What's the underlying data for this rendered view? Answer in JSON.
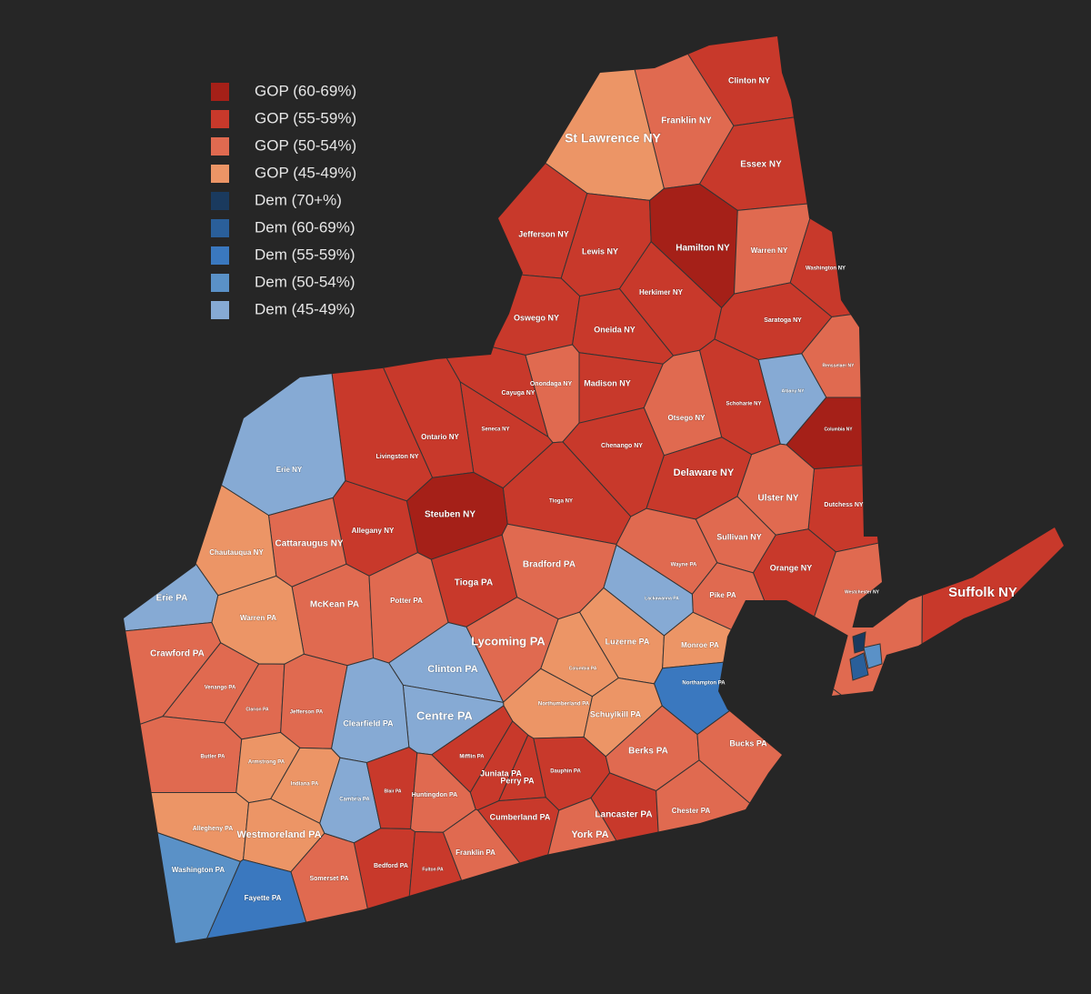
{
  "legend": [
    {
      "label": "GOP (60-69%)",
      "color": "#a52018"
    },
    {
      "label": "GOP (55-59%)",
      "color": "#c8392b"
    },
    {
      "label": "GOP (50-54%)",
      "color": "#e06a50"
    },
    {
      "label": "GOP (45-49%)",
      "color": "#ec9566"
    },
    {
      "label": "Dem (70+%)",
      "color": "#1a3a5e"
    },
    {
      "label": "Dem (60-69%)",
      "color": "#2a5f9a"
    },
    {
      "label": "Dem (55-59%)",
      "color": "#3a78bf"
    },
    {
      "label": "Dem (50-54%)",
      "color": "#5a91c7"
    },
    {
      "label": "Dem (45-49%)",
      "color": "#86aad4"
    }
  ],
  "counties": [
    {
      "name": "Clinton NY",
      "class": 1
    },
    {
      "name": "Franklin NY",
      "class": 2
    },
    {
      "name": "St Lawrence NY",
      "class": 3
    },
    {
      "name": "Essex NY",
      "class": 1
    },
    {
      "name": "Jefferson NY",
      "class": 1
    },
    {
      "name": "Lewis NY",
      "class": 1
    },
    {
      "name": "Hamilton NY",
      "class": 0
    },
    {
      "name": "Warren NY",
      "class": 2
    },
    {
      "name": "Washington NY",
      "class": 1
    },
    {
      "name": "Herkimer NY",
      "class": 1
    },
    {
      "name": "Oswego NY",
      "class": 1
    },
    {
      "name": "Oneida NY",
      "class": 1
    },
    {
      "name": "Saratoga NY",
      "class": 1
    },
    {
      "name": "Rensselaer NY",
      "class": 2
    },
    {
      "name": "Onondaga NY",
      "class": 2
    },
    {
      "name": "Madison NY",
      "class": 1
    },
    {
      "name": "Cayuga NY",
      "class": 1
    },
    {
      "name": "Albany NY",
      "class": 8
    },
    {
      "name": "Otsego NY",
      "class": 2
    },
    {
      "name": "Schoharie NY",
      "class": 1
    },
    {
      "name": "Columbia NY",
      "class": 0
    },
    {
      "name": "Seneca NY",
      "class": 1
    },
    {
      "name": "Ontario NY",
      "class": 1
    },
    {
      "name": "Livingston NY",
      "class": 1
    },
    {
      "name": "Chenango NY",
      "class": 1
    },
    {
      "name": "Erie NY",
      "class": 8
    },
    {
      "name": "Delaware NY",
      "class": 1
    },
    {
      "name": "Tioga NY",
      "class": 1
    },
    {
      "name": "Dutchess NY",
      "class": 1
    },
    {
      "name": "Ulster NY",
      "class": 2
    },
    {
      "name": "Steuben NY",
      "class": 0
    },
    {
      "name": "Allegany NY",
      "class": 1
    },
    {
      "name": "Cattaraugus NY",
      "class": 2
    },
    {
      "name": "Chautauqua NY",
      "class": 3
    },
    {
      "name": "Sullivan NY",
      "class": 2
    },
    {
      "name": "Orange NY",
      "class": 1
    },
    {
      "name": "Bradford PA",
      "class": 2
    },
    {
      "name": "Tioga PA",
      "class": 1
    },
    {
      "name": "Wayne PA",
      "class": 2
    },
    {
      "name": "Westchester NY",
      "class": 2
    },
    {
      "name": "Suffolk NY",
      "class": 1
    },
    {
      "name": "Pike PA",
      "class": 2
    },
    {
      "name": "Lackawanna PA",
      "class": 8
    },
    {
      "name": "Erie PA",
      "class": 8
    },
    {
      "name": "McKean PA",
      "class": 2
    },
    {
      "name": "Potter PA",
      "class": 2
    },
    {
      "name": "Warren PA",
      "class": 3
    },
    {
      "name": "Lycoming PA",
      "class": 2
    },
    {
      "name": "Luzerne PA",
      "class": 3
    },
    {
      "name": "Monroe PA",
      "class": 3
    },
    {
      "name": "Crawford PA",
      "class": 2
    },
    {
      "name": "Clinton PA",
      "class": 8
    },
    {
      "name": "Columbia PA",
      "class": 3
    },
    {
      "name": "Northampton PA",
      "class": 6
    },
    {
      "name": "Venango PA",
      "class": 2
    },
    {
      "name": "Clarion PA",
      "class": 2
    },
    {
      "name": "Jefferson PA",
      "class": 2
    },
    {
      "name": "Northumberland PA",
      "class": 3
    },
    {
      "name": "Centre PA",
      "class": 8
    },
    {
      "name": "Clearfield PA",
      "class": 8
    },
    {
      "name": "Schuylkill PA",
      "class": 3
    },
    {
      "name": "Butler PA",
      "class": 2
    },
    {
      "name": "Armstrong PA",
      "class": 3
    },
    {
      "name": "Mifflin PA",
      "class": 1
    },
    {
      "name": "Berks PA",
      "class": 2
    },
    {
      "name": "Bucks PA",
      "class": 2
    },
    {
      "name": "Indiana PA",
      "class": 3
    },
    {
      "name": "Juniata PA",
      "class": 1
    },
    {
      "name": "Perry PA",
      "class": 1
    },
    {
      "name": "Dauphin PA",
      "class": 1
    },
    {
      "name": "Cambria PA",
      "class": 8
    },
    {
      "name": "Blair PA",
      "class": 1
    },
    {
      "name": "Huntingdon PA",
      "class": 2
    },
    {
      "name": "Cumberland PA",
      "class": 1
    },
    {
      "name": "Lancaster PA",
      "class": 1
    },
    {
      "name": "Chester PA",
      "class": 2
    },
    {
      "name": "Allegheny PA",
      "class": 3
    },
    {
      "name": "Westmoreland PA",
      "class": 3
    },
    {
      "name": "York PA",
      "class": 2
    },
    {
      "name": "Franklin PA",
      "class": 2
    },
    {
      "name": "Bedford PA",
      "class": 1
    },
    {
      "name": "Fulton PA",
      "class": 1
    },
    {
      "name": "Somerset PA",
      "class": 2
    },
    {
      "name": "Washington PA",
      "class": 7
    },
    {
      "name": "Fayette PA",
      "class": 6
    }
  ]
}
